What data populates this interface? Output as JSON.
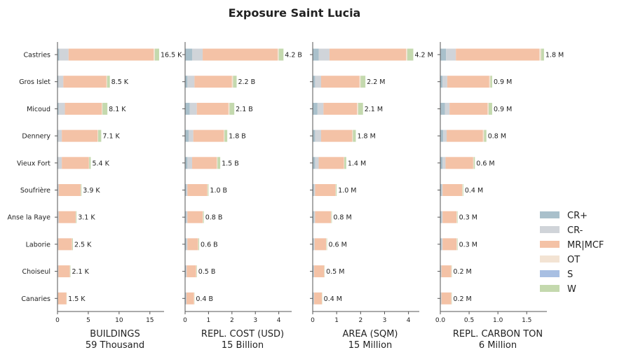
{
  "chart_data": {
    "type": "bar",
    "orientation": "horizontal",
    "stacked": true,
    "title": "Exposure Saint Lucia",
    "categories": [
      "Castries",
      "Gros Islet",
      "Micoud",
      "Dennery",
      "Vieux Fort",
      "Soufrière",
      "Anse la Raye",
      "Laborie",
      "Choiseul",
      "Canaries"
    ],
    "legend": {
      "placement": "right",
      "entries": [
        "CR+",
        "CR-",
        "MR|MCF",
        "OT",
        "S",
        "W"
      ]
    },
    "colors": {
      "CR+": "#a9c0cb",
      "CR-": "#d0d4d9",
      "MR|MCF": "#f4c2a6",
      "OT": "#f3e3d3",
      "S": "#a8bfe2",
      "W": "#c4d9ae"
    },
    "panels": [
      {
        "xlabel": "BUILDINGS",
        "sublabel": "59 Thousand",
        "xlim": [
          0,
          17.3
        ],
        "ticks": [
          0,
          5,
          10,
          15
        ],
        "tick_labels": [
          "0",
          "5",
          "10",
          "15"
        ],
        "totals": [
          16.5,
          8.5,
          8.1,
          7.1,
          5.4,
          3.9,
          3.1,
          2.5,
          2.1,
          1.5
        ],
        "labels": [
          "16.5 K",
          "8.5 K",
          "8.1 K",
          "7.1 K",
          "5.4 K",
          "3.9 K",
          "3.1 K",
          "2.5 K",
          "2.1 K",
          "1.5 K"
        ],
        "series": [
          {
            "name": "CR+",
            "values": [
              0.3,
              0.15,
              0.2,
              0.1,
              0.1,
              0.05,
              0.05,
              0.05,
              0.05,
              0.05
            ]
          },
          {
            "name": "CR-",
            "values": [
              1.5,
              0.8,
              1.0,
              0.6,
              0.6,
              0.15,
              0.15,
              0.1,
              0.1,
              0.05
            ]
          },
          {
            "name": "MR|MCF",
            "values": [
              13.8,
              7.0,
              6.0,
              5.8,
              4.4,
              3.55,
              2.75,
              2.2,
              1.85,
              1.35
            ]
          },
          {
            "name": "OT",
            "values": [
              0.2,
              0.1,
              0.1,
              0.1,
              0.05,
              0.05,
              0.05,
              0.05,
              0.03,
              0.02
            ]
          },
          {
            "name": "S",
            "values": [
              0.0,
              0.0,
              0.0,
              0.0,
              0.0,
              0.0,
              0.0,
              0.0,
              0.0,
              0.0
            ]
          },
          {
            "name": "W",
            "values": [
              0.7,
              0.45,
              0.8,
              0.5,
              0.25,
              0.1,
              0.1,
              0.1,
              0.07,
              0.03
            ]
          }
        ]
      },
      {
        "xlabel": "REPL. COST (USD)",
        "sublabel": "15 Billion",
        "xlim": [
          0,
          4.55
        ],
        "ticks": [
          0,
          1,
          2,
          3,
          4
        ],
        "tick_labels": [
          "0",
          "1",
          "2",
          "3",
          "4"
        ],
        "totals": [
          4.2,
          2.2,
          2.1,
          1.8,
          1.5,
          1.0,
          0.8,
          0.6,
          0.5,
          0.4
        ],
        "labels": [
          "4.2 B",
          "2.2 B",
          "2.1 B",
          "1.8 B",
          "1.5 B",
          "1.0 B",
          "0.8 B",
          "0.6 B",
          "0.5 B",
          "0.4 B"
        ],
        "series": [
          {
            "name": "CR+",
            "values": [
              0.3,
              0.1,
              0.2,
              0.15,
              0.1,
              0.05,
              0.05,
              0.05,
              0.03,
              0.03
            ]
          },
          {
            "name": "CR-",
            "values": [
              0.45,
              0.3,
              0.3,
              0.2,
              0.2,
              0.05,
              0.05,
              0.05,
              0.04,
              0.03
            ]
          },
          {
            "name": "MR|MCF",
            "values": [
              3.2,
              1.6,
              1.35,
              1.3,
              1.05,
              0.85,
              0.65,
              0.45,
              0.4,
              0.32
            ]
          },
          {
            "name": "OT",
            "values": [
              0.05,
              0.05,
              0.05,
              0.03,
              0.03,
              0.02,
              0.02,
              0.02,
              0.01,
              0.01
            ]
          },
          {
            "name": "S",
            "values": [
              0.0,
              0.0,
              0.0,
              0.0,
              0.0,
              0.0,
              0.0,
              0.0,
              0.0,
              0.0
            ]
          },
          {
            "name": "W",
            "values": [
              0.2,
              0.15,
              0.2,
              0.12,
              0.12,
              0.03,
              0.03,
              0.03,
              0.02,
              0.01
            ]
          }
        ]
      },
      {
        "xlabel": "AREA (SQM)",
        "sublabel": "15 Million",
        "xlim": [
          0,
          4.45
        ],
        "ticks": [
          0,
          1,
          2,
          3,
          4
        ],
        "tick_labels": [
          "0",
          "1",
          "2",
          "3",
          "4"
        ],
        "totals": [
          4.2,
          2.2,
          2.1,
          1.8,
          1.4,
          1.0,
          0.8,
          0.6,
          0.5,
          0.4
        ],
        "labels": [
          "4.2 M",
          "2.2 M",
          "2.1 M",
          "1.8 M",
          "1.4 M",
          "1.0 M",
          "0.8 M",
          "0.6 M",
          "0.5 M",
          "0.4 M"
        ],
        "series": [
          {
            "name": "CR+",
            "values": [
              0.25,
              0.1,
              0.2,
              0.1,
              0.1,
              0.05,
              0.05,
              0.04,
              0.03,
              0.03
            ]
          },
          {
            "name": "CR-",
            "values": [
              0.45,
              0.25,
              0.25,
              0.25,
              0.15,
              0.05,
              0.05,
              0.04,
              0.03,
              0.03
            ]
          },
          {
            "name": "MR|MCF",
            "values": [
              3.2,
              1.6,
              1.4,
              1.3,
              1.05,
              0.85,
              0.66,
              0.48,
              0.42,
              0.32
            ]
          },
          {
            "name": "OT",
            "values": [
              0.05,
              0.05,
              0.05,
              0.03,
              0.02,
              0.02,
              0.02,
              0.02,
              0.01,
              0.01
            ]
          },
          {
            "name": "S",
            "values": [
              0.0,
              0.0,
              0.0,
              0.0,
              0.0,
              0.0,
              0.0,
              0.0,
              0.0,
              0.0
            ]
          },
          {
            "name": "W",
            "values": [
              0.25,
              0.2,
              0.2,
              0.12,
              0.08,
              0.03,
              0.02,
              0.02,
              0.01,
              0.01
            ]
          }
        ]
      },
      {
        "xlabel": "REPL. CARBON TON",
        "sublabel": "6 Million",
        "xlim": [
          0,
          1.85
        ],
        "ticks": [
          0,
          0.5,
          1.0,
          1.5
        ],
        "tick_labels": [
          "0.0",
          "0.5",
          "1.0",
          "1.5"
        ],
        "totals": [
          1.8,
          0.9,
          0.9,
          0.8,
          0.6,
          0.4,
          0.3,
          0.3,
          0.2,
          0.2
        ],
        "labels": [
          "1.8 M",
          "0.9 M",
          "0.9 M",
          "0.8 M",
          "0.6 M",
          "0.4 M",
          "0.3 M",
          "0.3 M",
          "0.2 M",
          "0.2 M"
        ],
        "series": [
          {
            "name": "CR+",
            "values": [
              0.1,
              0.04,
              0.08,
              0.05,
              0.04,
              0.02,
              0.02,
              0.02,
              0.01,
              0.01
            ]
          },
          {
            "name": "CR-",
            "values": [
              0.17,
              0.08,
              0.08,
              0.06,
              0.05,
              0.02,
              0.02,
              0.02,
              0.01,
              0.01
            ]
          },
          {
            "name": "MR|MCF",
            "values": [
              1.45,
              0.73,
              0.66,
              0.63,
              0.48,
              0.34,
              0.24,
              0.24,
              0.17,
              0.17
            ]
          },
          {
            "name": "OT",
            "values": [
              0.03,
              0.02,
              0.02,
              0.02,
              0.01,
              0.01,
              0.01,
              0.01,
              0.005,
              0.005
            ]
          },
          {
            "name": "S",
            "values": [
              0.0,
              0.0,
              0.0,
              0.0,
              0.0,
              0.0,
              0.0,
              0.0,
              0.0,
              0.0
            ]
          },
          {
            "name": "W",
            "values": [
              0.05,
              0.03,
              0.06,
              0.04,
              0.02,
              0.01,
              0.01,
              0.01,
              0.005,
              0.005
            ]
          }
        ]
      }
    ]
  }
}
